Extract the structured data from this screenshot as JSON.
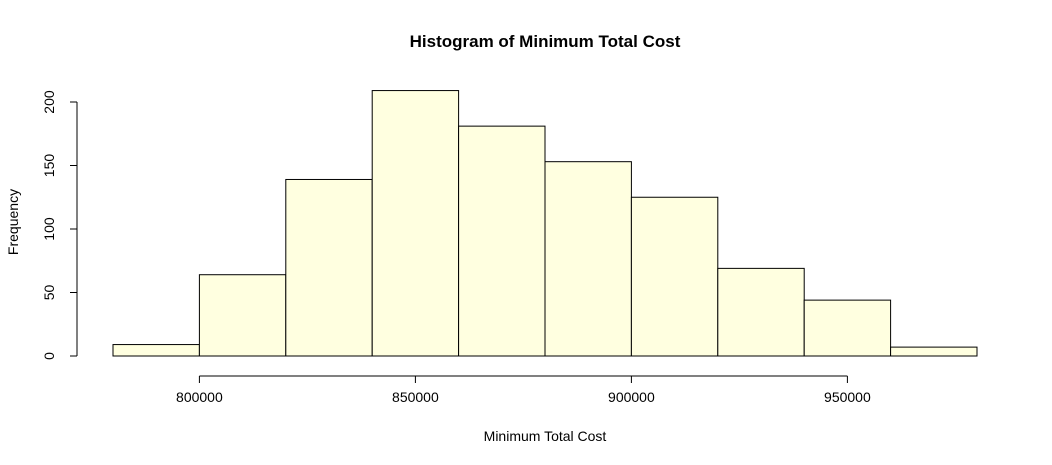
{
  "chart_data": {
    "type": "bar",
    "title": "Histogram of Minimum Total Cost",
    "xlabel": "Minimum Total Cost",
    "ylabel": "Frequency",
    "bin_edges": [
      780000,
      800000,
      820000,
      840000,
      860000,
      880000,
      900000,
      920000,
      940000,
      960000,
      980000
    ],
    "values": [
      9,
      64,
      139,
      209,
      181,
      153,
      125,
      69,
      44,
      7
    ],
    "xticks": [
      800000,
      850000,
      900000,
      950000
    ],
    "yticks": [
      0,
      50,
      100,
      150,
      200
    ],
    "xlim": [
      780000,
      980000
    ],
    "ylim": [
      0,
      209
    ],
    "bar_color": "#ffffe0",
    "grid": false,
    "legend": "none"
  }
}
